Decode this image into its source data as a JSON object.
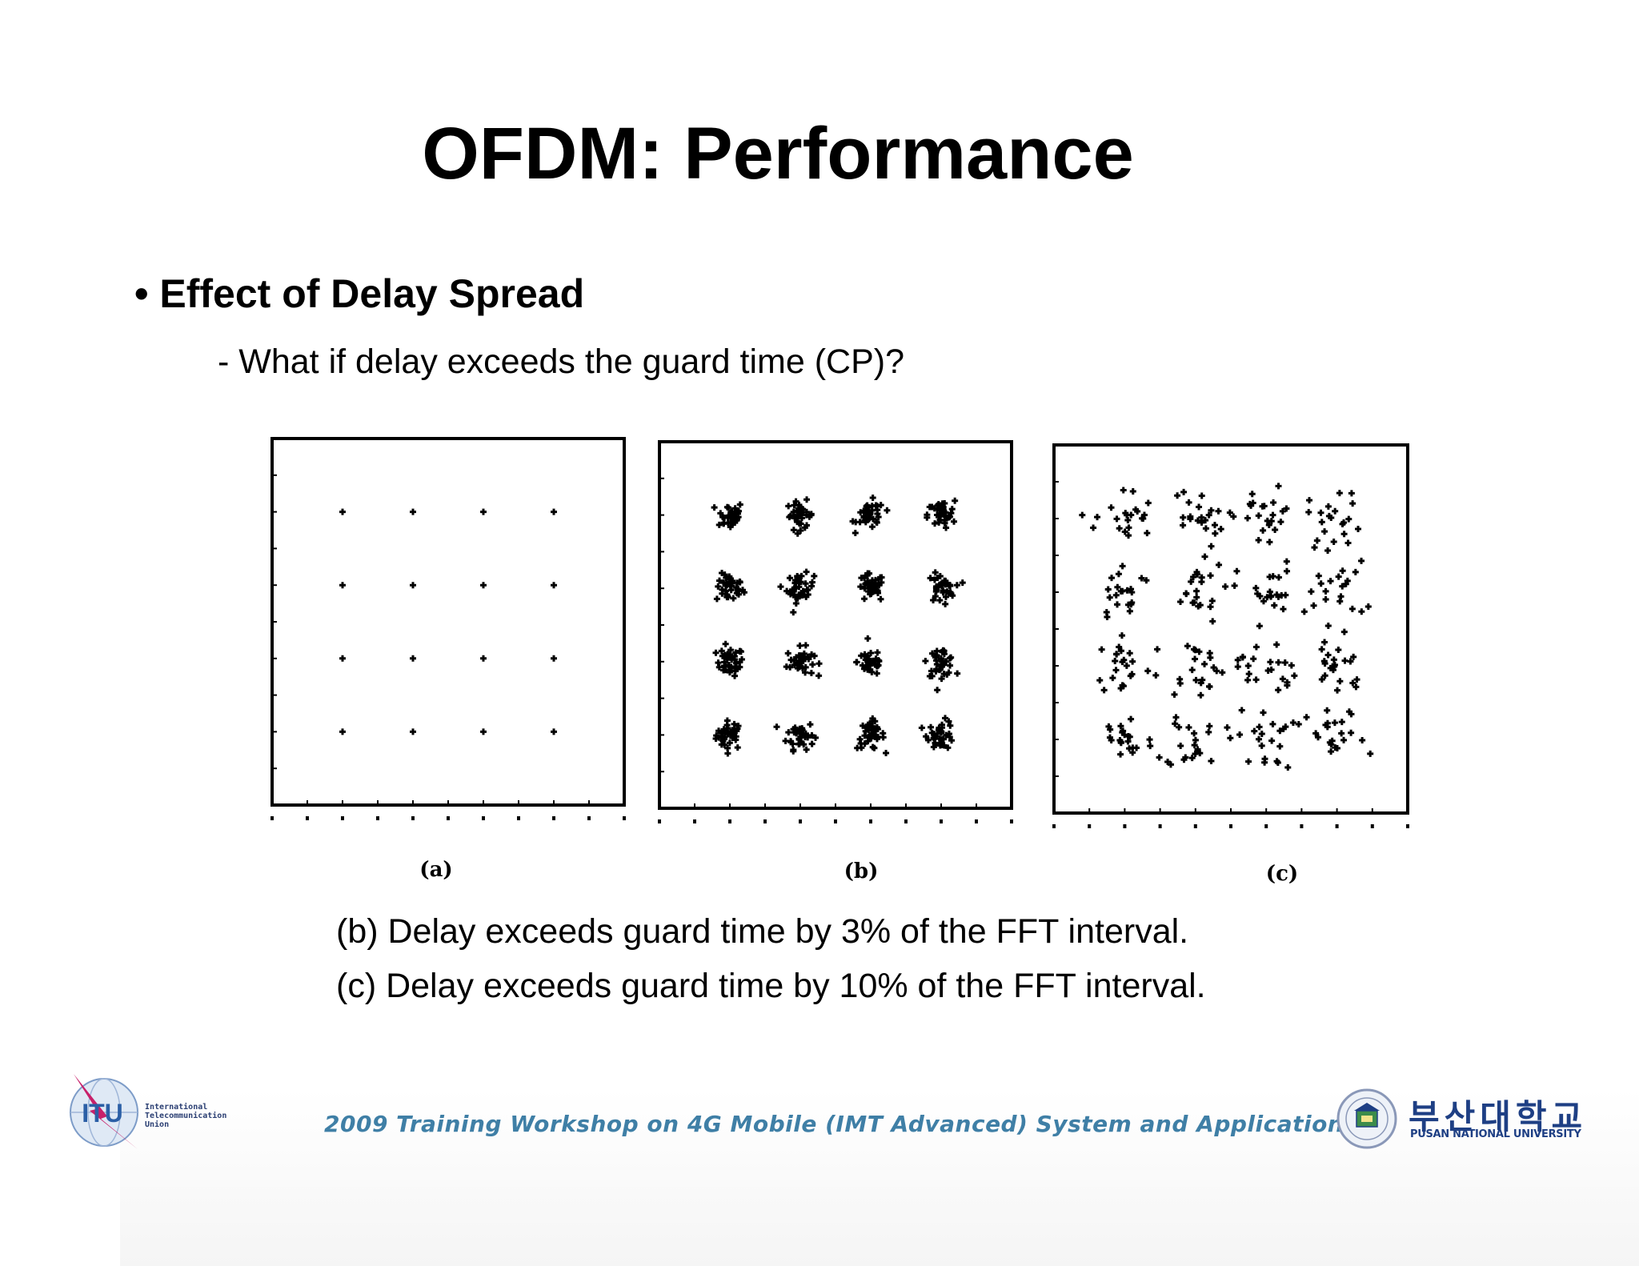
{
  "slide": {
    "title": "OFDM: Performance",
    "bullet": "• Effect of Delay Spread",
    "subbullet": "- What if delay exceeds the guard time (CP)?",
    "captions": [
      "(b) Delay exceeds guard time by 3% of the FFT interval.",
      "(c) Delay exceeds guard time by 10% of the FFT interval."
    ]
  },
  "footer": {
    "workshop_text": "2009 Training Workshop on 4G Mobile (IMT Advanced) System and Applications",
    "itu_logo_text": "ITU",
    "itu_name_lines": [
      "International",
      "Telecommunication",
      "Union"
    ],
    "university_korean": "부산대학교",
    "university_english": "PUSAN NATIONAL UNIVERSITY",
    "colors": {
      "workshop": "#3f7fa6",
      "itu_blue": "#2b5fa6",
      "itu_accent": "#c8206a",
      "pnu_blue": "#1e3f84"
    }
  },
  "chart_data": [
    {
      "type": "scatter",
      "label": "(a)",
      "constellation": "16-QAM",
      "ideal_points": [
        [
          -3,
          -3
        ],
        [
          -3,
          -1
        ],
        [
          -3,
          1
        ],
        [
          -3,
          3
        ],
        [
          -1,
          -3
        ],
        [
          -1,
          -1
        ],
        [
          -1,
          1
        ],
        [
          -1,
          3
        ],
        [
          1,
          -3
        ],
        [
          1,
          -1
        ],
        [
          1,
          1
        ],
        [
          1,
          3
        ],
        [
          3,
          -3
        ],
        [
          3,
          -1
        ],
        [
          3,
          1
        ],
        [
          3,
          3
        ]
      ],
      "spread": 0,
      "xlim": [
        -5,
        5
      ],
      "ylim": [
        -5,
        5
      ]
    },
    {
      "type": "scatter",
      "label": "(b)",
      "constellation": "16-QAM",
      "ideal_points": [
        [
          -3,
          -3
        ],
        [
          -3,
          -1
        ],
        [
          -3,
          1
        ],
        [
          -3,
          3
        ],
        [
          -1,
          -3
        ],
        [
          -1,
          -1
        ],
        [
          -1,
          1
        ],
        [
          -1,
          3
        ],
        [
          1,
          -3
        ],
        [
          1,
          -1
        ],
        [
          1,
          1
        ],
        [
          1,
          3
        ],
        [
          3,
          -3
        ],
        [
          3,
          -1
        ],
        [
          3,
          1
        ],
        [
          3,
          3
        ]
      ],
      "spread": 0.35,
      "xlim": [
        -5,
        5
      ],
      "ylim": [
        -5,
        5
      ]
    },
    {
      "type": "scatter",
      "label": "(c)",
      "constellation": "16-QAM",
      "ideal_points": [
        [
          -3,
          -3
        ],
        [
          -3,
          -1
        ],
        [
          -3,
          1
        ],
        [
          -3,
          3
        ],
        [
          -1,
          -3
        ],
        [
          -1,
          -1
        ],
        [
          -1,
          1
        ],
        [
          -1,
          3
        ],
        [
          1,
          -3
        ],
        [
          1,
          -1
        ],
        [
          1,
          1
        ],
        [
          1,
          3
        ],
        [
          3,
          -3
        ],
        [
          3,
          -1
        ],
        [
          3,
          1
        ],
        [
          3,
          3
        ]
      ],
      "spread": 0.75,
      "xlim": [
        -5,
        5
      ],
      "ylim": [
        -5,
        5
      ]
    }
  ]
}
